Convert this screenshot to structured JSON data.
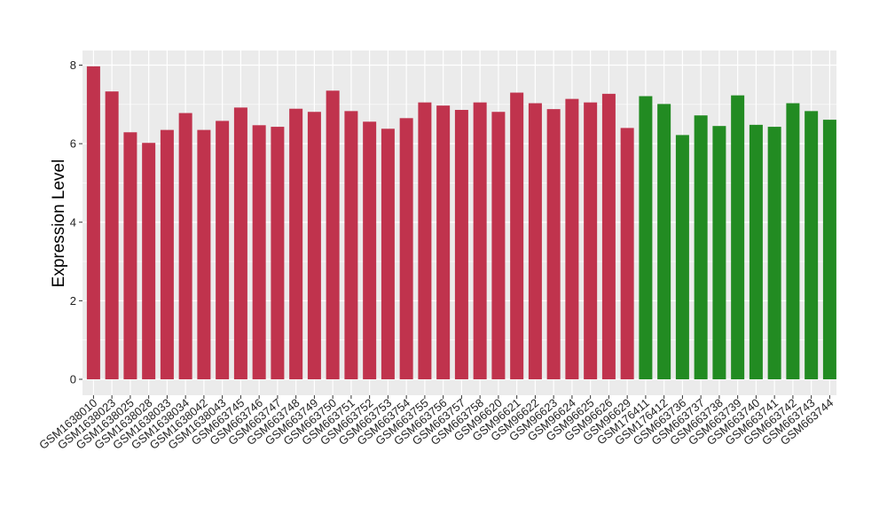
{
  "chart_data": {
    "type": "bar",
    "title": "",
    "xlabel": "",
    "ylabel": "Expression Level",
    "ylim": [
      0,
      8.3
    ],
    "yticks": [
      0,
      2,
      4,
      6,
      8
    ],
    "grid": true,
    "legend": "none",
    "colors": {
      "group_a": "#c0334d",
      "group_b": "#228b22",
      "panel": "#ebebeb",
      "grid": "#ffffff"
    },
    "categories": [
      "GSM1638010",
      "GSM1638023",
      "GSM1638025",
      "GSM1638028",
      "GSM1638033",
      "GSM1638034",
      "GSM1638042",
      "GSM1638043",
      "GSM663745",
      "GSM663746",
      "GSM663747",
      "GSM663748",
      "GSM663749",
      "GSM663750",
      "GSM663751",
      "GSM663752",
      "GSM663753",
      "GSM663754",
      "GSM663755",
      "GSM663756",
      "GSM663757",
      "GSM663758",
      "GSM96620",
      "GSM96621",
      "GSM96622",
      "GSM96623",
      "GSM96624",
      "GSM96625",
      "GSM96626",
      "GSM96629",
      "GSM176411",
      "GSM176412",
      "GSM663736",
      "GSM663737",
      "GSM663738",
      "GSM663739",
      "GSM663740",
      "GSM663741",
      "GSM663742",
      "GSM663743",
      "GSM663744"
    ],
    "values": [
      7.97,
      7.33,
      6.29,
      6.02,
      6.35,
      6.78,
      6.35,
      6.58,
      6.92,
      6.47,
      6.43,
      6.89,
      6.81,
      7.35,
      6.83,
      6.56,
      6.38,
      6.65,
      7.05,
      6.97,
      6.86,
      7.05,
      6.81,
      7.3,
      7.03,
      6.88,
      7.14,
      7.05,
      7.27,
      6.4,
      7.21,
      7.01,
      6.22,
      6.72,
      6.45,
      7.23,
      6.48,
      6.43,
      7.03,
      6.83,
      6.61
    ],
    "groups": [
      "a",
      "a",
      "a",
      "a",
      "a",
      "a",
      "a",
      "a",
      "a",
      "a",
      "a",
      "a",
      "a",
      "a",
      "a",
      "a",
      "a",
      "a",
      "a",
      "a",
      "a",
      "a",
      "a",
      "a",
      "a",
      "a",
      "a",
      "a",
      "a",
      "a",
      "b",
      "b",
      "b",
      "b",
      "b",
      "b",
      "b",
      "b",
      "b",
      "b",
      "b"
    ]
  }
}
